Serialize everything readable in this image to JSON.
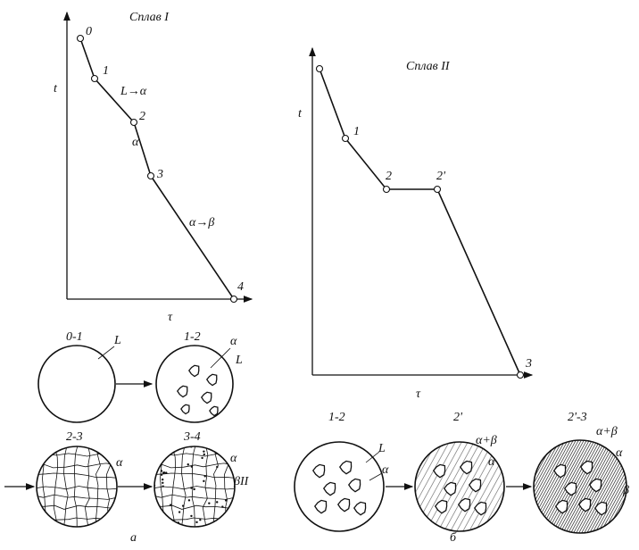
{
  "left": {
    "title": "Сплав I",
    "y_label": "t",
    "x_label": "τ",
    "points": [
      "0",
      "1",
      "2",
      "3",
      "4"
    ],
    "phases": [
      "L→α",
      "α",
      "α→β"
    ],
    "circles": [
      {
        "label": "0-1",
        "tags": [
          "L"
        ]
      },
      {
        "label": "1-2",
        "tags": [
          "α",
          "L"
        ]
      },
      {
        "label": "2-3",
        "tags": [
          "α"
        ]
      },
      {
        "label": "3-4",
        "tags": [
          "α",
          "βII"
        ]
      }
    ],
    "caption": "а"
  },
  "right": {
    "title": "Сплав II",
    "y_label": "t",
    "x_label": "τ",
    "points": [
      "1",
      "2",
      "2'",
      "3"
    ],
    "circles": [
      {
        "label": "1-2",
        "tags": [
          "L",
          "α"
        ]
      },
      {
        "label": "2'",
        "tags": [
          "α+β",
          "α"
        ]
      },
      {
        "label": "2'-3",
        "tags": [
          "α+β",
          "α",
          "β"
        ]
      }
    ],
    "caption": "б"
  }
}
